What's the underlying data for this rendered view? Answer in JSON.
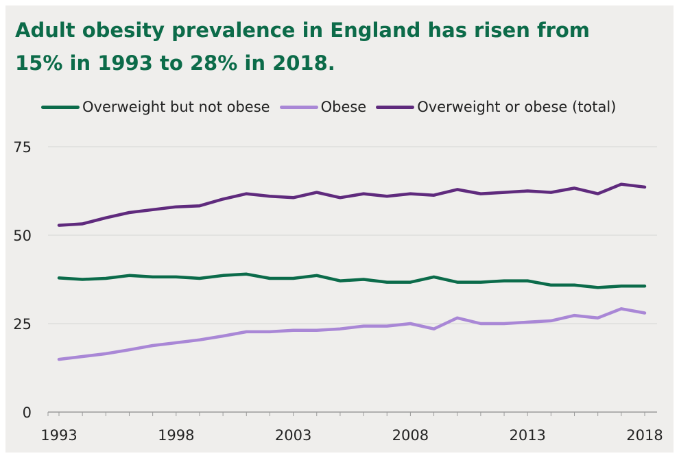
{
  "title_lines": [
    "Adult obesity prevalence in England has risen from",
    "15% in 1993 to 28% in 2018."
  ],
  "chart_data": {
    "type": "line",
    "title": "Adult obesity prevalence in England has risen from 15% in 1993 to 28% in 2018.",
    "xlabel": "",
    "ylabel": "",
    "x": [
      1993,
      1994,
      1995,
      1996,
      1997,
      1998,
      1999,
      2000,
      2001,
      2002,
      2003,
      2004,
      2005,
      2006,
      2007,
      2008,
      2009,
      2010,
      2011,
      2012,
      2013,
      2014,
      2015,
      2016,
      2017,
      2018
    ],
    "ylim": [
      0,
      75
    ],
    "y_ticks": [
      0,
      25,
      50,
      75
    ],
    "x_tick_labels": [
      "1993",
      "1998",
      "2003",
      "2008",
      "2013",
      "2018"
    ],
    "grid": true,
    "legend_position": "top",
    "series": [
      {
        "name": "Overweight but not obese",
        "color": "#0b6b4a",
        "values": [
          37.9,
          37.5,
          37.8,
          38.6,
          38.2,
          38.2,
          37.8,
          38.6,
          39.0,
          37.8,
          37.8,
          38.6,
          37.1,
          37.5,
          36.7,
          36.7,
          38.2,
          36.7,
          36.7,
          37.1,
          37.1,
          35.9,
          35.9,
          35.2,
          35.6,
          35.6
        ]
      },
      {
        "name": "Obese",
        "color": "#a987d6",
        "values": [
          14.9,
          15.7,
          16.5,
          17.6,
          18.8,
          19.6,
          20.4,
          21.5,
          22.7,
          22.7,
          23.1,
          23.1,
          23.5,
          24.3,
          24.3,
          25.0,
          23.5,
          26.6,
          25.0,
          25.0,
          25.4,
          25.8,
          27.3,
          26.6,
          29.2,
          28.0
        ]
      },
      {
        "name": "Overweight or obese (total)",
        "color": "#5f2a7d",
        "values": [
          52.8,
          53.2,
          54.9,
          56.4,
          57.2,
          58.0,
          58.3,
          60.2,
          61.7,
          61.0,
          60.6,
          62.1,
          60.6,
          61.7,
          61.0,
          61.7,
          61.3,
          62.9,
          61.7,
          62.1,
          62.5,
          62.1,
          63.3,
          61.7,
          64.4,
          63.6
        ]
      }
    ]
  }
}
